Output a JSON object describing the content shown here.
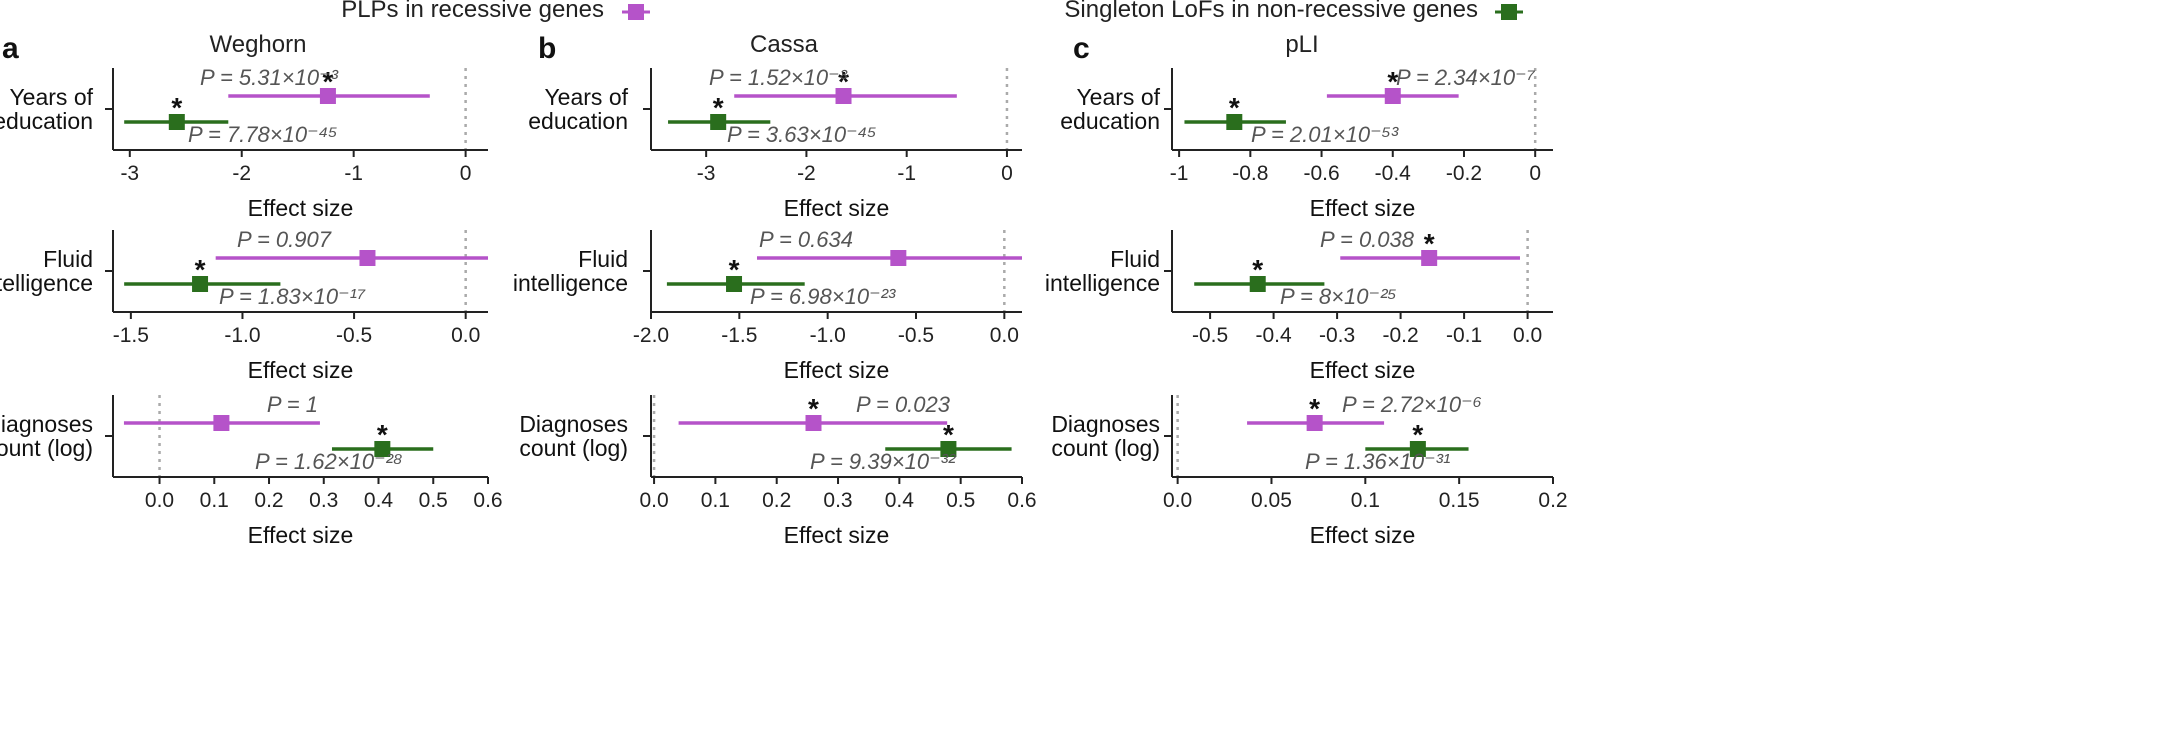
{
  "legend": [
    {
      "label": "PLPs in recessive genes",
      "color": "#b553c9"
    },
    {
      "label": "Singleton LoFs in non-recessive genes",
      "color": "#2a6e1d"
    }
  ],
  "chart_data": [
    {
      "type": "forest",
      "panel": "a",
      "title": "Weghorn",
      "rows": [
        {
          "label_lines": [
            "Years of",
            "education"
          ],
          "xlabel": "Effect size",
          "xlim": [
            -3.15,
            0.2
          ],
          "ticks": [
            -3,
            -2,
            -1,
            0
          ],
          "tick_labels": [
            "-3",
            "-2",
            "-1",
            "0"
          ],
          "points": [
            {
              "series": "PLPs in recessive genes",
              "value": -1.23,
              "lo": -2.12,
              "hi": -0.32,
              "p": "P = 5.31×10⁻³",
              "significant": true
            },
            {
              "series": "Singleton LoFs in non-recessive genes",
              "value": -2.58,
              "lo": -3.05,
              "hi": -2.12,
              "p": "P = 7.78×10⁻⁴⁵",
              "significant": true
            }
          ]
        },
        {
          "label_lines": [
            "Fluid",
            "intelligence"
          ],
          "xlabel": "Effect size",
          "xlim": [
            -1.58,
            0.1
          ],
          "ticks": [
            -1.5,
            -1.0,
            -0.5,
            0.0
          ],
          "tick_labels": [
            "-1.5",
            "-1.0",
            "-0.5",
            "0.0"
          ],
          "points": [
            {
              "series": "PLPs in recessive genes",
              "value": -0.44,
              "lo": -1.12,
              "hi": 0.1,
              "p": "P = 0.907",
              "significant": false
            },
            {
              "series": "Singleton LoFs in non-recessive genes",
              "value": -1.19,
              "lo": -1.53,
              "hi": -0.83,
              "p": "P = 1.83×10⁻¹⁷",
              "significant": true
            }
          ]
        },
        {
          "label_lines": [
            "Diagnoses",
            "count (log)"
          ],
          "xlabel": "Effect size",
          "xlim": [
            -0.085,
            0.6
          ],
          "ticks": [
            0.0,
            0.1,
            0.2,
            0.3,
            0.4,
            0.5,
            0.6
          ],
          "tick_labels": [
            "0.0",
            "0.1",
            "0.2",
            "0.3",
            "0.4",
            "0.5",
            "0.6"
          ],
          "points": [
            {
              "series": "PLPs in recessive genes",
              "value": 0.113,
              "lo": -0.065,
              "hi": 0.293,
              "p": "P = 1",
              "significant": false
            },
            {
              "series": "Singleton LoFs in non-recessive genes",
              "value": 0.407,
              "lo": 0.315,
              "hi": 0.5,
              "p": "P = 1.62×10⁻²⁸",
              "significant": true
            }
          ]
        }
      ]
    },
    {
      "type": "forest",
      "panel": "b",
      "title": "Cassa",
      "rows": [
        {
          "label_lines": [
            "Years of",
            "education"
          ],
          "xlabel": "Effect size",
          "xlim": [
            -3.55,
            0.15
          ],
          "ticks": [
            -3,
            -2,
            -1,
            0
          ],
          "tick_labels": [
            "-3",
            "-2",
            "-1",
            "0"
          ],
          "points": [
            {
              "series": "PLPs in recessive genes",
              "value": -1.63,
              "lo": -2.72,
              "hi": -0.5,
              "p": "P = 1.52×10⁻³",
              "significant": true
            },
            {
              "series": "Singleton LoFs in non-recessive genes",
              "value": -2.88,
              "lo": -3.38,
              "hi": -2.36,
              "p": "P = 3.63×10⁻⁴⁵",
              "significant": true
            }
          ]
        },
        {
          "label_lines": [
            "Fluid",
            "intelligence"
          ],
          "xlabel": "Effect size",
          "xlim": [
            -2.0,
            0.1
          ],
          "ticks": [
            -2.0,
            -1.5,
            -1.0,
            -0.5,
            0.0
          ],
          "tick_labels": [
            "-2.0",
            "-1.5",
            "-1.0",
            "-0.5",
            "0.0"
          ],
          "points": [
            {
              "series": "PLPs in recessive genes",
              "value": -0.6,
              "lo": -1.4,
              "hi": 0.1,
              "p": "P = 0.634",
              "significant": false
            },
            {
              "series": "Singleton LoFs in non-recessive genes",
              "value": -1.53,
              "lo": -1.91,
              "hi": -1.13,
              "p": "P = 6.98×10⁻²³",
              "significant": true
            }
          ]
        },
        {
          "label_lines": [
            "Diagnoses",
            "count (log)"
          ],
          "xlabel": "Effect size",
          "xlim": [
            -0.005,
            0.6
          ],
          "ticks": [
            0.0,
            0.1,
            0.2,
            0.3,
            0.4,
            0.5,
            0.6
          ],
          "tick_labels": [
            "0.0",
            "0.1",
            "0.2",
            "0.3",
            "0.4",
            "0.5",
            "0.6"
          ],
          "points": [
            {
              "series": "PLPs in recessive genes",
              "value": 0.26,
              "lo": 0.04,
              "hi": 0.478,
              "p": "P = 0.023",
              "significant": true
            },
            {
              "series": "Singleton LoFs in non-recessive genes",
              "value": 0.48,
              "lo": 0.377,
              "hi": 0.583,
              "p": "P = 9.39×10⁻³²",
              "significant": true
            }
          ]
        }
      ]
    },
    {
      "type": "forest",
      "panel": "c",
      "title": "pLI",
      "rows": [
        {
          "label_lines": [
            "Years of",
            "education"
          ],
          "xlabel": "Effect size",
          "xlim": [
            -1.02,
            0.05
          ],
          "ticks": [
            -1,
            -0.8,
            -0.6,
            -0.4,
            -0.2,
            0
          ],
          "tick_labels": [
            "-1",
            "-0.8",
            "-0.6",
            "-0.4",
            "-0.2",
            "0"
          ],
          "points": [
            {
              "series": "PLPs in recessive genes",
              "value": -0.4,
              "lo": -0.585,
              "hi": -0.215,
              "p": "P = 2.34×10⁻⁷",
              "significant": true
            },
            {
              "series": "Singleton LoFs in non-recessive genes",
              "value": -0.845,
              "lo": -0.985,
              "hi": -0.7,
              "p": "P = 2.01×10⁻⁵³",
              "significant": true
            }
          ]
        },
        {
          "label_lines": [
            "Fluid",
            "intelligence"
          ],
          "xlabel": "Effect size",
          "xlim": [
            -0.56,
            0.04
          ],
          "ticks": [
            -0.5,
            -0.4,
            -0.3,
            -0.2,
            -0.1,
            0.0
          ],
          "tick_labels": [
            "-0.5",
            "-0.4",
            "-0.3",
            "-0.2",
            "-0.1",
            "0.0"
          ],
          "points": [
            {
              "series": "PLPs in recessive genes",
              "value": -0.155,
              "lo": -0.295,
              "hi": -0.012,
              "p": "P = 0.038",
              "significant": true
            },
            {
              "series": "Singleton LoFs in non-recessive genes",
              "value": -0.425,
              "lo": -0.525,
              "hi": -0.32,
              "p": "P = 8×10⁻²⁵",
              "significant": true
            }
          ]
        },
        {
          "label_lines": [
            "Diagnoses",
            "count (log)"
          ],
          "xlabel": "Effect size",
          "xlim": [
            -0.003,
            0.2
          ],
          "ticks": [
            0.0,
            0.05,
            0.1,
            0.15,
            0.2
          ],
          "tick_labels": [
            "0.0",
            "0.05",
            "0.1",
            "0.15",
            "0.2"
          ],
          "points": [
            {
              "series": "PLPs in recessive genes",
              "value": 0.073,
              "lo": 0.037,
              "hi": 0.11,
              "p": "P = 2.72×10⁻⁶",
              "significant": true
            },
            {
              "series": "Singleton LoFs in non-recessive genes",
              "value": 0.128,
              "lo": 0.1,
              "hi": 0.155,
              "p": "P = 1.36×10⁻³¹",
              "significant": true
            }
          ]
        }
      ]
    }
  ]
}
